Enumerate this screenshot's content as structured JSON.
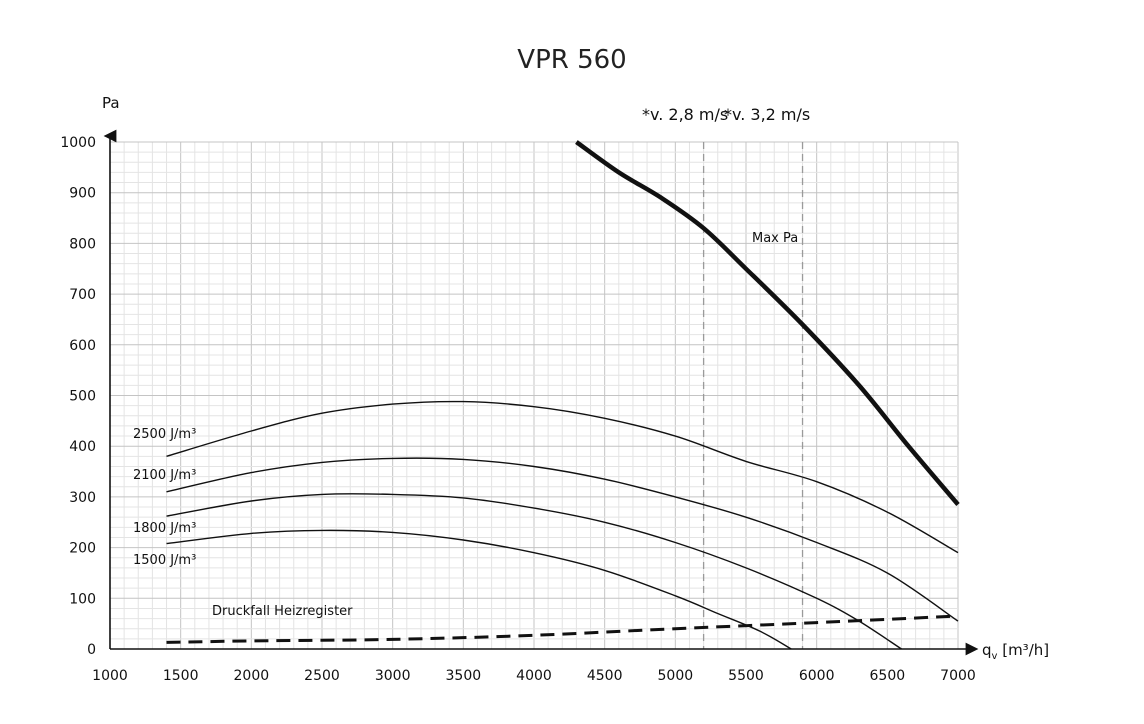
{
  "chart_data": {
    "type": "line",
    "title": "VPR 560",
    "ylabel": "Pa",
    "xlabel_main": "q",
    "xlabel_sub": "v",
    "xlabel_unit": " [m³/h]",
    "xlim": [
      1000,
      7000
    ],
    "ylim": [
      0,
      1000
    ],
    "x_ticks": [
      1000,
      1500,
      2000,
      2500,
      3000,
      3500,
      4000,
      4500,
      5000,
      5500,
      6000,
      6500,
      7000
    ],
    "y_ticks": [
      0,
      100,
      200,
      300,
      400,
      500,
      600,
      700,
      800,
      900,
      1000
    ],
    "grid": true,
    "series": [
      {
        "name": "Max Pa",
        "style": "bold",
        "x": [
          4300,
          4600,
          4900,
          5200,
          5500,
          5900,
          6300,
          6650,
          7000
        ],
        "y": [
          1000,
          940,
          890,
          830,
          750,
          640,
          520,
          400,
          285
        ]
      },
      {
        "name": "2500 J/m³",
        "style": "thin",
        "x": [
          1400,
          2000,
          2500,
          3000,
          3500,
          4000,
          4500,
          5000,
          5500,
          6000,
          6500,
          7000
        ],
        "y": [
          380,
          430,
          465,
          483,
          488,
          478,
          455,
          420,
          370,
          330,
          270,
          190
        ]
      },
      {
        "name": "2100 J/m³",
        "style": "thin",
        "x": [
          1400,
          2000,
          2500,
          3000,
          3500,
          4000,
          4500,
          5000,
          5500,
          6000,
          6500,
          7000
        ],
        "y": [
          310,
          348,
          368,
          376,
          374,
          360,
          335,
          300,
          260,
          210,
          150,
          55
        ]
      },
      {
        "name": "1800 J/m³",
        "style": "thin",
        "x": [
          1400,
          2000,
          2500,
          3000,
          3500,
          4000,
          4500,
          5000,
          5500,
          6000,
          6300,
          6600
        ],
        "y": [
          262,
          292,
          305,
          305,
          298,
          278,
          250,
          210,
          160,
          100,
          55,
          0
        ]
      },
      {
        "name": "1500 J/m³",
        "style": "thin",
        "x": [
          1400,
          2000,
          2500,
          3000,
          3500,
          4000,
          4500,
          5000,
          5300,
          5600,
          5820
        ],
        "y": [
          208,
          228,
          234,
          230,
          215,
          190,
          155,
          105,
          70,
          35,
          0
        ]
      },
      {
        "name": "Druckfall Heizregister",
        "style": "dashed",
        "x": [
          1400,
          2000,
          3000,
          4000,
          5000,
          6000,
          7000
        ],
        "y": [
          13,
          16,
          19,
          27,
          40,
          52,
          65
        ]
      }
    ],
    "reference_lines": [
      {
        "label": "*v. 2,8 m/s",
        "x": 5200
      },
      {
        "label": "*v. 3,2 m/s",
        "x": 5900
      }
    ]
  }
}
